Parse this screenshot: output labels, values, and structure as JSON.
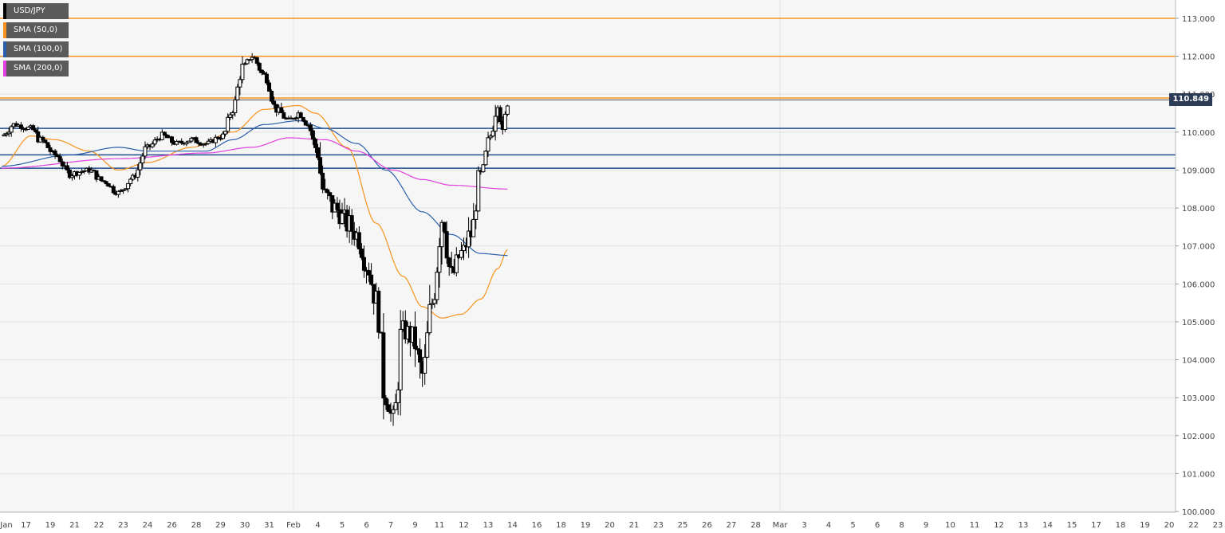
{
  "legend": [
    {
      "label": "USD/JPY",
      "color": "#000000"
    },
    {
      "label": "SMA (50,0)",
      "color": "#f7931e"
    },
    {
      "label": "SMA (100,0)",
      "color": "#2b5fad"
    },
    {
      "label": "SMA (200,0)",
      "color": "#e040e0"
    }
  ],
  "current_price_label": "110.849",
  "chart_data": {
    "type": "candlestick",
    "symbol": "USD/JPY",
    "ylim": [
      100.0,
      113.0
    ],
    "y_ticks": [
      "100.000",
      "101.000",
      "102.000",
      "103.000",
      "104.000",
      "105.000",
      "106.000",
      "107.000",
      "108.000",
      "109.000",
      "110.000",
      "111.000",
      "112.000",
      "113.000"
    ],
    "x_ticks": [
      "Jan",
      "17",
      "19",
      "21",
      "22",
      "23",
      "24",
      "26",
      "28",
      "29",
      "30",
      "31",
      "Feb",
      "4",
      "5",
      "6",
      "7",
      "9",
      "11",
      "12",
      "13",
      "14",
      "16",
      "18",
      "19",
      "20",
      "21",
      "23",
      "25",
      "26",
      "27",
      "28",
      "Mar",
      "3",
      "4",
      "5",
      "6",
      "8",
      "9",
      "10",
      "11",
      "12",
      "13",
      "14",
      "15",
      "17",
      "18",
      "19",
      "20",
      "22",
      "23"
    ],
    "current_price": 110.849,
    "horizontal_levels": [
      {
        "value": 113.0,
        "color": "#f7931e"
      },
      {
        "value": 112.0,
        "color": "#f7931e"
      },
      {
        "value": 110.9,
        "color": "#f7931e"
      },
      {
        "value": 110.1,
        "color": "#1f4e8c"
      },
      {
        "value": 109.4,
        "color": "#1f4e8c"
      },
      {
        "value": 109.05,
        "color": "#1f4e8c"
      }
    ],
    "close_anchors": [
      [
        0,
        109.9
      ],
      [
        0.5,
        110.2
      ],
      [
        1.2,
        110.1
      ],
      [
        1.6,
        109.8
      ],
      [
        2.2,
        109.4
      ],
      [
        2.8,
        108.9
      ],
      [
        3.6,
        109.0
      ],
      [
        4.2,
        108.7
      ],
      [
        4.8,
        108.4
      ],
      [
        5.4,
        108.8
      ],
      [
        6.0,
        109.6
      ],
      [
        6.6,
        109.9
      ],
      [
        7.2,
        109.7
      ],
      [
        7.8,
        109.8
      ],
      [
        8.4,
        109.7
      ],
      [
        9.1,
        109.9
      ],
      [
        9.5,
        110.6
      ],
      [
        9.9,
        111.7
      ],
      [
        10.3,
        112.0
      ],
      [
        10.8,
        111.5
      ],
      [
        11.3,
        110.6
      ],
      [
        11.8,
        110.3
      ],
      [
        12.2,
        110.5
      ],
      [
        12.6,
        110.2
      ],
      [
        12.9,
        109.6
      ],
      [
        13.3,
        108.3
      ],
      [
        13.7,
        108.0
      ],
      [
        14.2,
        107.6
      ],
      [
        14.6,
        107.3
      ],
      [
        15.0,
        106.5
      ],
      [
        15.4,
        105.6
      ],
      [
        15.8,
        103.0
      ],
      [
        16.1,
        102.4
      ],
      [
        16.5,
        104.8
      ],
      [
        16.9,
        104.6
      ],
      [
        17.3,
        103.6
      ],
      [
        17.7,
        105.5
      ],
      [
        18.1,
        107.8
      ],
      [
        18.5,
        106.2
      ],
      [
        18.9,
        106.8
      ],
      [
        19.3,
        107.3
      ],
      [
        19.7,
        108.9
      ],
      [
        20.1,
        109.9
      ],
      [
        20.4,
        110.9
      ],
      [
        20.6,
        109.9
      ],
      [
        20.8,
        110.85
      ]
    ],
    "sma50_anchors": [
      [
        0,
        109.1
      ],
      [
        1.2,
        109.9
      ],
      [
        2.2,
        109.8
      ],
      [
        3.6,
        109.5
      ],
      [
        4.8,
        109.0
      ],
      [
        6.0,
        109.2
      ],
      [
        7.8,
        109.6
      ],
      [
        9.5,
        110.0
      ],
      [
        10.8,
        110.6
      ],
      [
        12.2,
        110.7
      ],
      [
        12.9,
        110.5
      ],
      [
        14.2,
        109.6
      ],
      [
        15.4,
        107.6
      ],
      [
        16.5,
        106.2
      ],
      [
        17.3,
        105.4
      ],
      [
        18.1,
        105.1
      ],
      [
        18.9,
        105.2
      ],
      [
        19.7,
        105.6
      ],
      [
        20.4,
        106.4
      ],
      [
        20.8,
        106.9
      ]
    ],
    "sma100_anchors": [
      [
        0,
        109.1
      ],
      [
        2.8,
        109.4
      ],
      [
        4.8,
        109.6
      ],
      [
        6.0,
        109.5
      ],
      [
        8.4,
        109.5
      ],
      [
        9.5,
        109.8
      ],
      [
        10.8,
        110.2
      ],
      [
        12.2,
        110.3
      ],
      [
        13.3,
        110.1
      ],
      [
        14.6,
        109.7
      ],
      [
        15.8,
        109.0
      ],
      [
        17.3,
        107.9
      ],
      [
        18.5,
        107.3
      ],
      [
        19.7,
        106.8
      ],
      [
        20.8,
        106.75
      ]
    ],
    "sma200_anchors": [
      [
        0,
        109.05
      ],
      [
        4.8,
        109.3
      ],
      [
        8.4,
        109.45
      ],
      [
        10.3,
        109.6
      ],
      [
        11.8,
        109.85
      ],
      [
        13.3,
        109.8
      ],
      [
        14.6,
        109.5
      ],
      [
        16.1,
        109.0
      ],
      [
        17.3,
        108.75
      ],
      [
        18.5,
        108.6
      ],
      [
        20.8,
        108.5
      ]
    ]
  }
}
